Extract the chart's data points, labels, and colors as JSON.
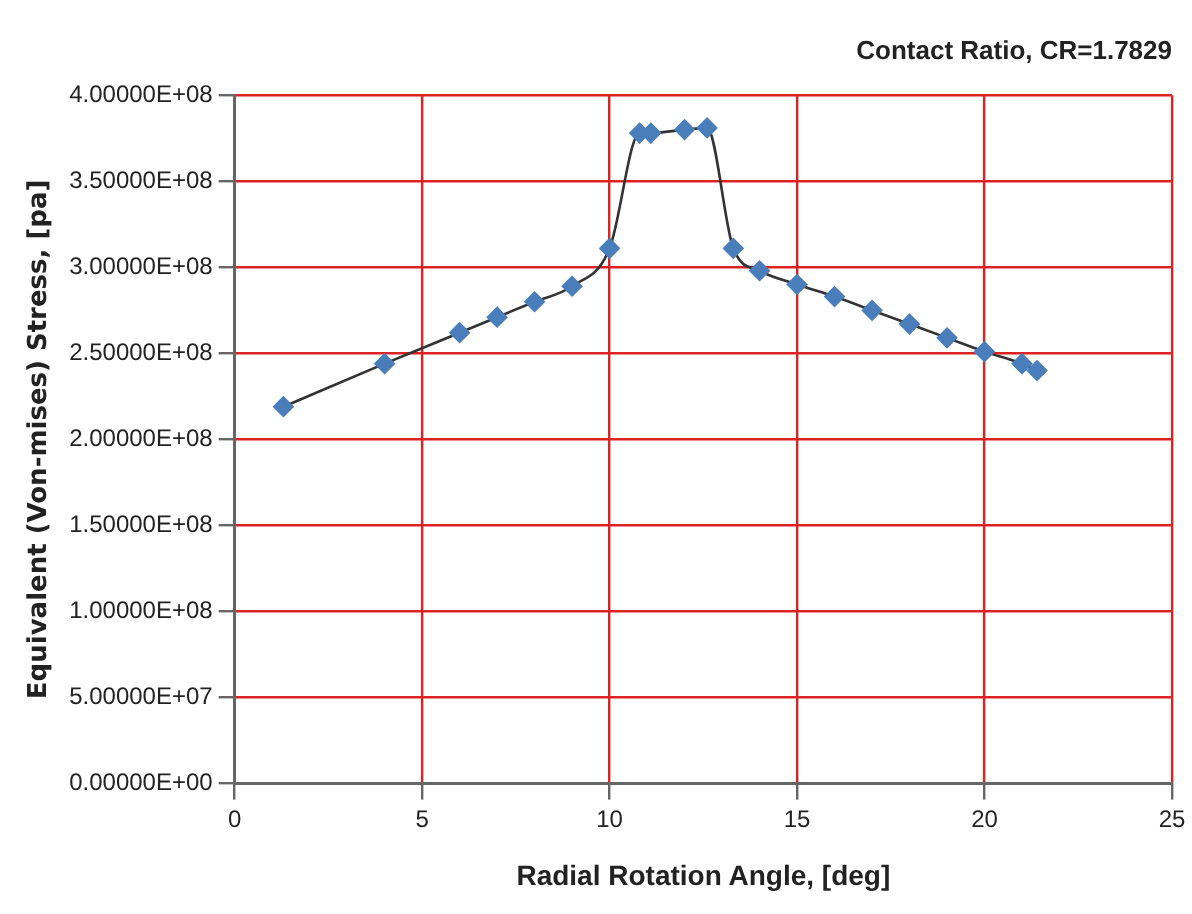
{
  "chart_data": {
    "type": "line",
    "title": "Contact Ratio, CR=1.7829",
    "xlabel": "Radial Rotation Angle, [deg]",
    "ylabel": "Equivalent (Von-mises) Stress, [pa]",
    "x": [
      1.3,
      4,
      6,
      7,
      8,
      9,
      10,
      10.8,
      11.1,
      12,
      12.6,
      13.3,
      14,
      15,
      16,
      17,
      18,
      19,
      20,
      21,
      21.4
    ],
    "series": [
      {
        "color": "#4a7ebb",
        "values": [
          219000000.0,
          244000000.0,
          262000000.0,
          271000000.0,
          280000000.0,
          289000000.0,
          311000000.0,
          378000000.0,
          378000000.0,
          380000000.0,
          381000000.0,
          311000000.0,
          298000000.0,
          290000000.0,
          283000000.0,
          275000000.0,
          267000000.0,
          259000000.0,
          251000000.0,
          244000000.0,
          240000000.0
        ]
      }
    ],
    "xlim": [
      0,
      25
    ],
    "xticks": [
      0,
      5,
      10,
      15,
      20,
      25
    ],
    "ylim": [
      0,
      400000000
    ],
    "yticks": [
      {
        "value": 0,
        "label": "0.00000E+00"
      },
      {
        "value": 50000000,
        "label": "5.00000E+07"
      },
      {
        "value": 100000000,
        "label": "1.00000E+08"
      },
      {
        "value": 150000000,
        "label": "1.50000E+08"
      },
      {
        "value": 200000000,
        "label": "2.00000E+08"
      },
      {
        "value": 250000000,
        "label": "2.50000E+08"
      },
      {
        "value": 300000000,
        "label": "3.00000E+08"
      },
      {
        "value": 350000000,
        "label": "3.50000E+08"
      },
      {
        "value": 400000000,
        "label": "4.00000E+08"
      }
    ],
    "grid": true,
    "legend": false,
    "marker": "diamond",
    "line_style": "solid"
  }
}
